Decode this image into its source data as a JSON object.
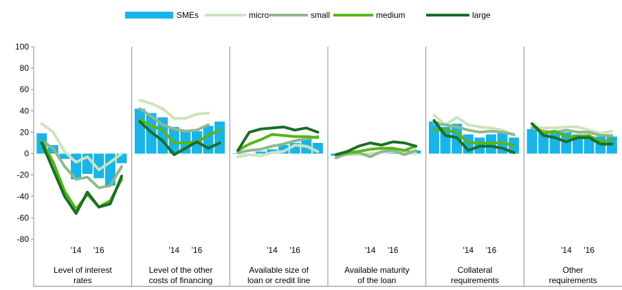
{
  "chart_data": {
    "type": "bar",
    "ylim": [
      -80,
      100
    ],
    "yticks": [
      -80,
      -60,
      -40,
      -20,
      0,
      20,
      40,
      60,
      80,
      100
    ],
    "grid": false,
    "legend_position": "top",
    "x_tick_labels": [
      "'14",
      "'16"
    ],
    "panels": [
      {
        "label_lines": [
          "Level of interest",
          "rates"
        ],
        "bars": [
          19,
          8,
          -5,
          -24,
          -19,
          -23,
          -30,
          -9
        ],
        "lines": {
          "micro": [
            28,
            20,
            2,
            -8,
            -3,
            -15,
            -8,
            0
          ],
          "small": [
            12,
            5,
            -12,
            -24,
            -22,
            -32,
            -30,
            -12
          ],
          "medium": [
            12,
            -8,
            -35,
            -52,
            -38,
            -50,
            -44,
            -24
          ],
          "large": [
            10,
            -15,
            -40,
            -56,
            -36,
            -50,
            -47,
            -21
          ]
        }
      },
      {
        "label_lines": [
          "Level of the other",
          "costs of financing"
        ],
        "bars": [
          42,
          38,
          34,
          25,
          22,
          21,
          26,
          30
        ],
        "lines": {
          "micro": [
            50,
            47,
            42,
            33,
            33,
            37,
            38,
            null
          ],
          "small": [
            42,
            35,
            27,
            23,
            21,
            22,
            27,
            null
          ],
          "medium": [
            32,
            26,
            22,
            10,
            10,
            11,
            17,
            22
          ],
          "large": [
            30,
            20,
            12,
            -1,
            5,
            11,
            5,
            10
          ]
        }
      },
      {
        "label_lines": [
          "Available size of",
          "loan or credit line"
        ],
        "bars": [
          0,
          0,
          2,
          4,
          8,
          10,
          14,
          10
        ],
        "lines": {
          "micro": [
            -3,
            -1,
            -2,
            1,
            2,
            8,
            7,
            2
          ],
          "small": [
            1,
            3,
            4,
            7,
            9,
            12,
            14,
            16
          ],
          "medium": [
            3,
            9,
            13,
            18,
            17,
            16,
            16,
            15
          ],
          "large": [
            3,
            20,
            23,
            24,
            25,
            22,
            24,
            20
          ]
        }
      },
      {
        "label_lines": [
          "Available maturity",
          "of the loan"
        ],
        "bars": [
          -2,
          -1,
          0,
          1,
          2,
          3,
          3,
          3
        ],
        "lines": {
          "micro": [
            -2,
            -1,
            -1,
            0,
            1,
            2,
            1,
            0
          ],
          "small": [
            -4,
            0,
            1,
            -3,
            2,
            3,
            -1,
            3
          ],
          "medium": [
            -1,
            1,
            2,
            4,
            5,
            5,
            3,
            7
          ],
          "large": [
            -1,
            2,
            7,
            10,
            8,
            11,
            10,
            7
          ]
        }
      },
      {
        "label_lines": [
          "Collateral",
          "requirements"
        ],
        "bars": [
          30,
          25,
          28,
          18,
          15,
          18,
          19,
          15
        ],
        "lines": {
          "micro": [
            36,
            27,
            34,
            27,
            25,
            24,
            22,
            17
          ],
          "small": [
            28,
            27,
            25,
            22,
            20,
            21,
            20,
            18
          ],
          "medium": [
            22,
            22,
            20,
            10,
            10,
            10,
            10,
            8
          ],
          "large": [
            31,
            17,
            15,
            3,
            7,
            7,
            5,
            1
          ]
        }
      },
      {
        "label_lines": [
          "Other",
          "requirements"
        ],
        "bars": [
          23,
          20,
          19,
          20,
          18,
          15,
          16,
          16
        ],
        "lines": {
          "micro": [
            25,
            24,
            24,
            25,
            25,
            22,
            19,
            21
          ],
          "small": [
            24,
            21,
            20,
            22,
            20,
            20,
            17,
            17
          ],
          "medium": [
            28,
            19,
            21,
            16,
            16,
            17,
            11,
            13
          ],
          "large": [
            28,
            17,
            15,
            11,
            15,
            15,
            9,
            9
          ]
        }
      }
    ],
    "series": [
      {
        "name": "SMEs",
        "kind": "bar",
        "color": "#19B4E8"
      },
      {
        "name": "micro",
        "kind": "line",
        "color": "#CDE3BC"
      },
      {
        "name": "small",
        "kind": "line",
        "color": "#8DB88C"
      },
      {
        "name": "medium",
        "kind": "line",
        "color": "#58B51A"
      },
      {
        "name": "large",
        "kind": "line",
        "color": "#1A6E25"
      }
    ]
  }
}
